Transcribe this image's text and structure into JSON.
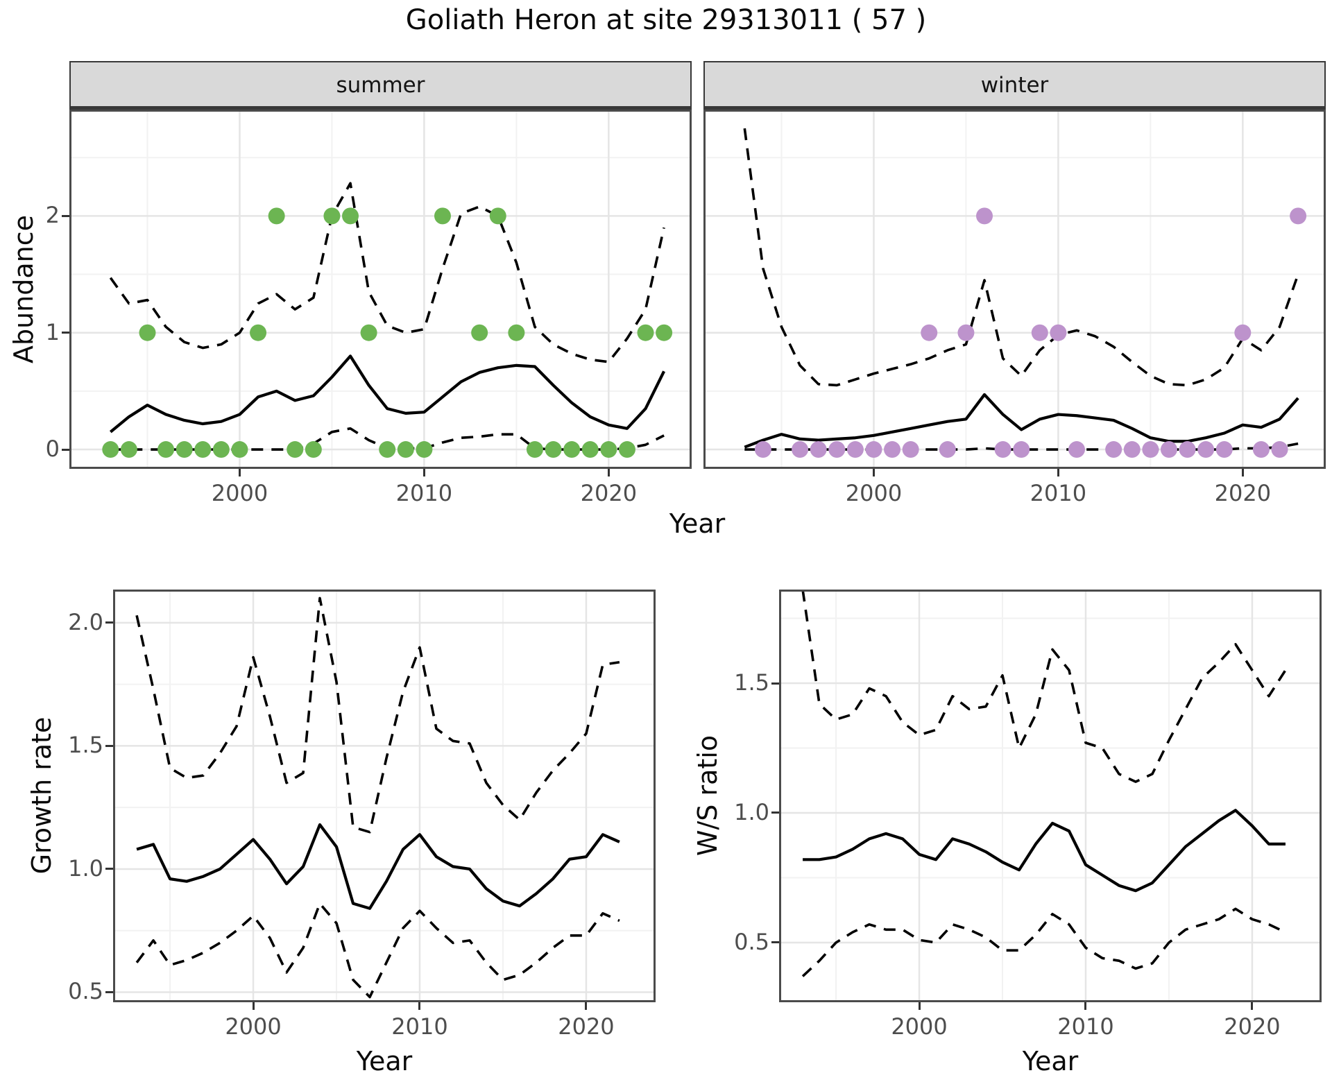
{
  "title": "Goliath Heron at site 29313011 ( 57 )",
  "colors": {
    "summer_dot": "#6cb552",
    "winter_dot": "#bd93cc",
    "line": "#000000",
    "grid_major": "#e5e5e5",
    "grid_minor": "#f2f2f2",
    "strip_bg": "#d9d9d9",
    "panel_border": "#4b4b4b",
    "tick_text": "#4d4d4d"
  },
  "chart_data": [
    {
      "id": "abundance",
      "type": "line",
      "ylabel": "Abundance",
      "xlabel": "Year",
      "xlim": [
        1990.77,
        2024.5
      ],
      "ylim": [
        -0.166,
        2.911
      ],
      "grid": true,
      "legend": "none",
      "xticks": [
        {
          "v": 2000,
          "label": "2000"
        },
        {
          "v": 2010,
          "label": "2010"
        },
        {
          "v": 2020,
          "label": "2020"
        }
      ],
      "xticks_minor": [
        1995,
        2005,
        2015
      ],
      "yticks": [
        {
          "v": 0,
          "label": "0"
        },
        {
          "v": 1,
          "label": "1"
        },
        {
          "v": 2,
          "label": "2"
        }
      ],
      "yticks_minor": [
        0.5,
        1.5,
        2.5
      ],
      "years": [
        1993,
        1994,
        1995,
        1996,
        1997,
        1998,
        1999,
        2000,
        2001,
        2002,
        2003,
        2004,
        2005,
        2006,
        2007,
        2008,
        2009,
        2010,
        2011,
        2012,
        2013,
        2014,
        2015,
        2016,
        2017,
        2018,
        2019,
        2020,
        2021,
        2022,
        2023
      ],
      "facets": [
        {
          "label": "summer",
          "dot_color": "#6cb552",
          "observed": [
            0,
            0,
            1,
            0,
            0,
            0,
            0,
            0,
            1,
            2,
            0,
            0,
            2,
            2,
            1,
            0,
            0,
            0,
            2,
            null,
            1,
            2,
            1,
            0,
            0,
            0,
            0,
            0,
            0,
            1,
            1
          ],
          "median": [
            0.15,
            0.28,
            0.38,
            0.3,
            0.25,
            0.22,
            0.24,
            0.3,
            0.45,
            0.5,
            0.42,
            0.46,
            0.62,
            0.8,
            0.55,
            0.35,
            0.31,
            0.32,
            0.45,
            0.58,
            0.66,
            0.7,
            0.72,
            0.71,
            0.55,
            0.4,
            0.28,
            0.21,
            0.18,
            0.35,
            0.67
          ],
          "upper": [
            1.47,
            1.25,
            1.28,
            1.05,
            0.92,
            0.87,
            0.9,
            1.0,
            1.25,
            1.33,
            1.2,
            1.3,
            2.0,
            2.28,
            1.35,
            1.06,
            1.0,
            1.03,
            1.55,
            2.02,
            2.08,
            2.0,
            1.6,
            1.05,
            0.9,
            0.82,
            0.77,
            0.75,
            0.95,
            1.2,
            1.9
          ],
          "lower": [
            0,
            0,
            0,
            0,
            0,
            0,
            0,
            0,
            0,
            0,
            0,
            0.05,
            0.15,
            0.18,
            0.08,
            0.01,
            0.01,
            0.01,
            0.06,
            0.1,
            0.11,
            0.13,
            0.13,
            0.01,
            0,
            0,
            0,
            0,
            0.01,
            0.04,
            0.12
          ]
        },
        {
          "label": "winter",
          "dot_color": "#bd93cc",
          "observed": [
            null,
            0,
            null,
            0,
            0,
            0,
            0,
            0,
            0,
            0,
            1,
            0,
            1,
            2,
            0,
            0,
            1,
            1,
            0,
            null,
            0,
            0,
            0,
            0,
            0,
            0,
            0,
            1,
            0,
            0,
            2
          ],
          "median": [
            0.02,
            0.08,
            0.13,
            0.09,
            0.08,
            0.09,
            0.1,
            0.12,
            0.15,
            0.18,
            0.21,
            0.24,
            0.26,
            0.47,
            0.3,
            0.17,
            0.26,
            0.3,
            0.29,
            0.27,
            0.25,
            0.18,
            0.1,
            0.07,
            0.07,
            0.1,
            0.14,
            0.21,
            0.19,
            0.26,
            0.44
          ],
          "upper": [
            2.75,
            1.55,
            1.05,
            0.72,
            0.56,
            0.55,
            0.6,
            0.65,
            0.69,
            0.73,
            0.78,
            0.85,
            0.9,
            1.45,
            0.78,
            0.63,
            0.85,
            0.98,
            1.02,
            0.97,
            0.88,
            0.75,
            0.63,
            0.56,
            0.55,
            0.6,
            0.7,
            0.95,
            0.85,
            1.05,
            1.5
          ],
          "lower": [
            0,
            0,
            0,
            0,
            0,
            0,
            0,
            0,
            0,
            0,
            0,
            0,
            0,
            0.01,
            0,
            0,
            0,
            0,
            0,
            0,
            0,
            0,
            0,
            0,
            0,
            0,
            0,
            0.01,
            0.01,
            0.02,
            0.05
          ]
        }
      ]
    },
    {
      "id": "growth_rate",
      "type": "line",
      "ylabel": "Growth rate",
      "xlabel": "Year",
      "xlim": [
        1991.58,
        2024.17
      ],
      "ylim": [
        0.459,
        2.135
      ],
      "grid": true,
      "xticks": [
        {
          "v": 2000,
          "label": "2000"
        },
        {
          "v": 2010,
          "label": "2010"
        },
        {
          "v": 2020,
          "label": "2020"
        }
      ],
      "xticks_minor": [
        1995,
        2005,
        2015
      ],
      "yticks": [
        {
          "v": 0.5,
          "label": "0.5"
        },
        {
          "v": 1.0,
          "label": "1.0"
        },
        {
          "v": 1.5,
          "label": "1.5"
        },
        {
          "v": 2.0,
          "label": "2.0"
        }
      ],
      "yticks_minor": [
        0.75,
        1.25,
        1.75
      ],
      "years": [
        1993,
        1994,
        1995,
        1996,
        1997,
        1998,
        1999,
        2000,
        2001,
        2002,
        2003,
        2004,
        2005,
        2006,
        2007,
        2008,
        2009,
        2010,
        2011,
        2012,
        2013,
        2014,
        2015,
        2016,
        2017,
        2018,
        2019,
        2020,
        2021,
        2022
      ],
      "series": {
        "median": [
          1.08,
          1.1,
          0.96,
          0.95,
          0.97,
          1.0,
          1.06,
          1.12,
          1.04,
          0.94,
          1.01,
          1.18,
          1.09,
          0.86,
          0.84,
          0.95,
          1.08,
          1.14,
          1.05,
          1.01,
          1.0,
          0.92,
          0.87,
          0.85,
          0.9,
          0.96,
          1.04,
          1.05,
          1.14,
          1.11
        ],
        "upper": [
          2.03,
          1.73,
          1.41,
          1.37,
          1.38,
          1.47,
          1.58,
          1.86,
          1.62,
          1.35,
          1.39,
          2.1,
          1.76,
          1.17,
          1.15,
          1.45,
          1.72,
          1.9,
          1.57,
          1.52,
          1.51,
          1.35,
          1.26,
          1.2,
          1.31,
          1.4,
          1.47,
          1.55,
          1.83,
          1.84
        ],
        "lower": [
          0.62,
          0.71,
          0.61,
          0.63,
          0.66,
          0.7,
          0.75,
          0.81,
          0.72,
          0.58,
          0.68,
          0.86,
          0.78,
          0.55,
          0.48,
          0.62,
          0.76,
          0.83,
          0.76,
          0.7,
          0.71,
          0.62,
          0.55,
          0.57,
          0.62,
          0.68,
          0.73,
          0.73,
          0.82,
          0.79
        ]
      }
    },
    {
      "id": "ws_ratio",
      "type": "line",
      "ylabel": "W/S ratio",
      "xlabel": "Year",
      "xlim": [
        1991.58,
        2024.17
      ],
      "ylim": [
        0.27,
        1.861
      ],
      "grid": true,
      "xticks": [
        {
          "v": 2000,
          "label": "2000"
        },
        {
          "v": 2010,
          "label": "2010"
        },
        {
          "v": 2020,
          "label": "2020"
        }
      ],
      "xticks_minor": [
        1995,
        2005,
        2015
      ],
      "yticks": [
        {
          "v": 0.5,
          "label": "0.5"
        },
        {
          "v": 1.0,
          "label": "1.0"
        },
        {
          "v": 1.5,
          "label": "1.5"
        }
      ],
      "yticks_minor": [
        0.75,
        1.25,
        1.75
      ],
      "years": [
        1993,
        1994,
        1995,
        1996,
        1997,
        1998,
        1999,
        2000,
        2001,
        2002,
        2003,
        2004,
        2005,
        2006,
        2007,
        2008,
        2009,
        2010,
        2011,
        2012,
        2013,
        2014,
        2015,
        2016,
        2017,
        2018,
        2019,
        2020,
        2021,
        2022
      ],
      "series": {
        "median": [
          0.82,
          0.82,
          0.83,
          0.86,
          0.9,
          0.92,
          0.9,
          0.84,
          0.82,
          0.9,
          0.88,
          0.85,
          0.81,
          0.78,
          0.88,
          0.96,
          0.93,
          0.8,
          0.76,
          0.72,
          0.7,
          0.73,
          0.8,
          0.87,
          0.92,
          0.97,
          1.01,
          0.95,
          0.88,
          0.88
        ],
        "upper": [
          1.86,
          1.42,
          1.36,
          1.38,
          1.48,
          1.45,
          1.35,
          1.3,
          1.32,
          1.45,
          1.4,
          1.41,
          1.53,
          1.25,
          1.38,
          1.63,
          1.55,
          1.27,
          1.25,
          1.15,
          1.12,
          1.15,
          1.28,
          1.4,
          1.52,
          1.58,
          1.65,
          1.55,
          1.45,
          1.55
        ],
        "lower": [
          0.37,
          0.43,
          0.5,
          0.54,
          0.57,
          0.55,
          0.55,
          0.51,
          0.5,
          0.57,
          0.55,
          0.52,
          0.47,
          0.47,
          0.53,
          0.61,
          0.57,
          0.48,
          0.44,
          0.43,
          0.4,
          0.42,
          0.5,
          0.55,
          0.57,
          0.59,
          0.63,
          0.59,
          0.57,
          0.54
        ]
      }
    }
  ]
}
